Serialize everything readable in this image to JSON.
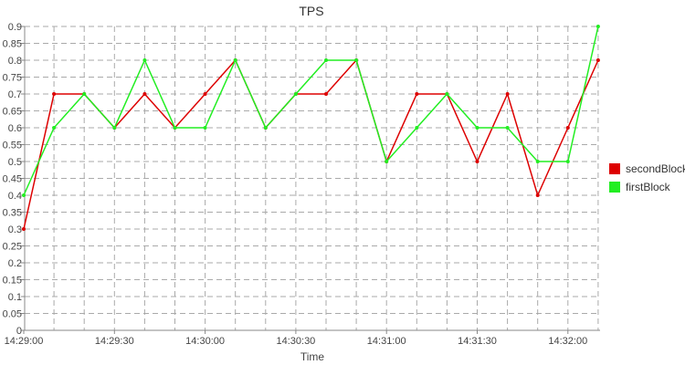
{
  "chart_data": {
    "type": "line",
    "title": "TPS",
    "xlabel": "Time",
    "ylabel": "",
    "ylim": [
      0,
      0.9
    ],
    "yticks": [
      "0",
      "0.05",
      "0.1",
      "0.15",
      "0.2",
      "0.25",
      "0.3",
      "0.35",
      "0.4",
      "0.45",
      "0.5",
      "0.55",
      "0.6",
      "0.65",
      "0.7",
      "0.75",
      "0.8",
      "0.85",
      "0.9"
    ],
    "x": [
      "14:29:00",
      "14:29:10",
      "14:29:20",
      "14:29:30",
      "14:29:40",
      "14:29:50",
      "14:30:00",
      "14:30:10",
      "14:30:20",
      "14:30:30",
      "14:30:40",
      "14:30:50",
      "14:31:00",
      "14:31:10",
      "14:31:20",
      "14:31:30",
      "14:31:40",
      "14:31:50",
      "14:32:00",
      "14:32:10"
    ],
    "xticks": [
      "14:29:00",
      "14:29:30",
      "14:30:00",
      "14:30:30",
      "14:31:00",
      "14:31:30",
      "14:32:00"
    ],
    "grid": true,
    "legend_position": "right",
    "series": [
      {
        "name": "secondBlock",
        "color": "#dd0000",
        "values": [
          0.3,
          0.7,
          0.7,
          0.6,
          0.7,
          0.6,
          0.7,
          0.8,
          0.6,
          0.7,
          0.7,
          0.8,
          0.5,
          0.7,
          0.7,
          0.5,
          0.7,
          0.4,
          0.6,
          0.8
        ]
      },
      {
        "name": "firstBlock",
        "color": "#22ee22",
        "values": [
          0.4,
          0.6,
          0.7,
          0.6,
          0.8,
          0.6,
          0.6,
          0.8,
          0.6,
          0.7,
          0.8,
          0.8,
          0.5,
          0.6,
          0.7,
          0.6,
          0.6,
          0.5,
          0.5,
          0.9
        ]
      }
    ]
  }
}
